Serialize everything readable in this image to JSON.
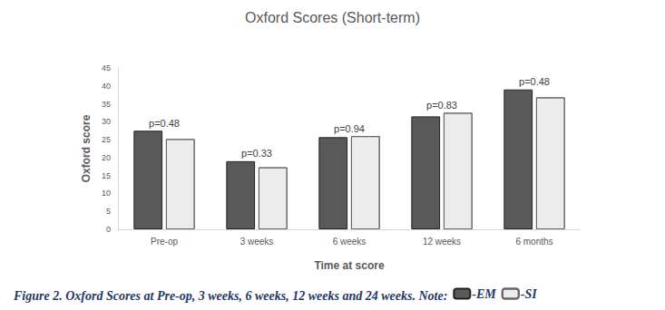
{
  "chart_data": {
    "type": "bar",
    "title": "Oxford Scores (Short-term)",
    "x_label": "Time at score",
    "y_label": "Oxford score",
    "caption": "Figure 2. Oxford Scores at Pre-op, 3 weeks, 6 weeks, 12 weeks and 24 weeks. Note:",
    "categories": [
      "Pre-op",
      "3 weeks",
      "6 weeks",
      "12 weeks",
      "6 months"
    ],
    "series": [
      {
        "name": "-EM",
        "color": "#595959",
        "values": [
          27.5,
          19,
          25.7,
          31.5,
          39
        ]
      },
      {
        "name": "-SI",
        "color": "#ececec",
        "values": [
          25.2,
          17.3,
          26,
          32.5,
          36.8
        ]
      }
    ],
    "annotations": [
      "p=0.48",
      "p=0.33",
      "p=0.94",
      "p=0.83",
      "p=0.48"
    ],
    "ylim": [
      0,
      45
    ],
    "yticks": [
      0,
      5,
      10,
      15,
      20,
      25,
      30,
      35,
      40,
      45
    ],
    "grid": false,
    "legend": "bottom"
  }
}
